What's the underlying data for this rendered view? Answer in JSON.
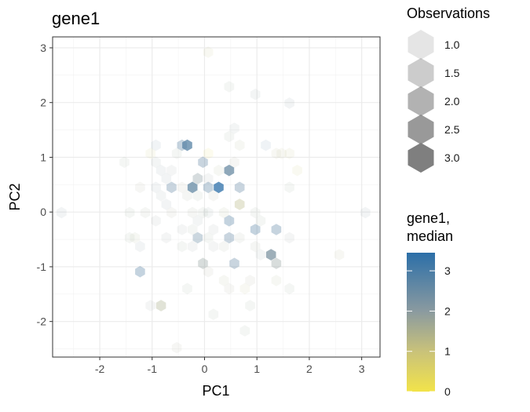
{
  "chart_data": {
    "type": "hexbin",
    "title": "gene1",
    "xlabel": "PC1",
    "ylabel": "PC2",
    "xlim": [
      -2.9,
      3.35
    ],
    "ylim": [
      -2.65,
      3.2
    ],
    "x_ticks": [
      -2,
      -1,
      0,
      1,
      2,
      3
    ],
    "y_ticks": [
      -2,
      -1,
      0,
      1,
      2,
      3
    ],
    "grid": true,
    "legend_size": {
      "title": "Observations",
      "entries": [
        {
          "label": "1.0",
          "alpha": 0.2
        },
        {
          "label": "1.5",
          "alpha": 0.4
        },
        {
          "label": "2.0",
          "alpha": 0.6
        },
        {
          "label": "2.5",
          "alpha": 0.8
        },
        {
          "label": "3.0",
          "alpha": 1.0
        }
      ],
      "color": "#7f7f7f"
    },
    "legend_color": {
      "title_lines": [
        "gene1,",
        "median"
      ],
      "ticks": [
        {
          "label": "0",
          "value": 0
        },
        {
          "label": "1",
          "value": 1
        },
        {
          "label": "2",
          "value": 2
        },
        {
          "label": "3",
          "value": 3
        }
      ],
      "range": [
        0,
        3.45
      ],
      "stops": [
        {
          "value": 0,
          "color": "#f2e34a"
        },
        {
          "value": 1,
          "color": "#c9c27a"
        },
        {
          "value": 2,
          "color": "#8a9aa0"
        },
        {
          "value": 3.45,
          "color": "#2c6fa8"
        }
      ]
    },
    "points": [
      {
        "x": 0.07,
        "y": 2.92,
        "median": 1.2,
        "count": 1
      },
      {
        "x": 0.47,
        "y": 2.29,
        "median": 1.8,
        "count": 1
      },
      {
        "x": 0.97,
        "y": 2.15,
        "median": 2.0,
        "count": 1
      },
      {
        "x": 1.62,
        "y": 1.99,
        "median": 2.2,
        "count": 1
      },
      {
        "x": 0.57,
        "y": 1.53,
        "median": 2.0,
        "count": 1
      },
      {
        "x": 0.47,
        "y": 1.38,
        "median": 1.8,
        "count": 1
      },
      {
        "x": -0.93,
        "y": 1.22,
        "median": 2.3,
        "count": 1
      },
      {
        "x": -0.43,
        "y": 1.22,
        "median": 2.7,
        "count": 2
      },
      {
        "x": -0.33,
        "y": 1.22,
        "median": 2.8,
        "count": 3
      },
      {
        "x": 0.67,
        "y": 1.22,
        "median": 1.5,
        "count": 1
      },
      {
        "x": 1.17,
        "y": 1.22,
        "median": 2.6,
        "count": 1
      },
      {
        "x": -1.03,
        "y": 1.07,
        "median": 1.0,
        "count": 1
      },
      {
        "x": -0.53,
        "y": 1.07,
        "median": 1.8,
        "count": 1
      },
      {
        "x": 0.07,
        "y": 1.07,
        "median": 0.4,
        "count": 1
      },
      {
        "x": 1.37,
        "y": 1.07,
        "median": 1.4,
        "count": 1
      },
      {
        "x": 1.47,
        "y": 1.07,
        "median": 1.3,
        "count": 1
      },
      {
        "x": 1.62,
        "y": 1.07,
        "median": 1.2,
        "count": 1
      },
      {
        "x": -1.53,
        "y": 0.91,
        "median": 1.8,
        "count": 1
      },
      {
        "x": -0.93,
        "y": 0.91,
        "median": 2.0,
        "count": 1
      },
      {
        "x": -0.03,
        "y": 0.91,
        "median": 2.6,
        "count": 2
      },
      {
        "x": 0.57,
        "y": 0.91,
        "median": 1.6,
        "count": 1
      },
      {
        "x": -0.83,
        "y": 0.76,
        "median": 2.2,
        "count": 1
      },
      {
        "x": -0.63,
        "y": 0.76,
        "median": 1.9,
        "count": 1
      },
      {
        "x": 0.27,
        "y": 0.76,
        "median": 1.5,
        "count": 1
      },
      {
        "x": 0.47,
        "y": 0.76,
        "median": 2.5,
        "count": 3
      },
      {
        "x": 1.77,
        "y": 0.76,
        "median": 1.0,
        "count": 1
      },
      {
        "x": -0.73,
        "y": 0.61,
        "median": 2.1,
        "count": 1
      },
      {
        "x": -0.13,
        "y": 0.61,
        "median": 2.0,
        "count": 2
      },
      {
        "x": 0.07,
        "y": 0.61,
        "median": 1.9,
        "count": 1
      },
      {
        "x": -1.23,
        "y": 0.45,
        "median": 1.6,
        "count": 1
      },
      {
        "x": -0.93,
        "y": 0.45,
        "median": 2.2,
        "count": 1
      },
      {
        "x": -0.63,
        "y": 0.45,
        "median": 2.6,
        "count": 2
      },
      {
        "x": -0.43,
        "y": 0.45,
        "median": 1.6,
        "count": 1
      },
      {
        "x": -0.23,
        "y": 0.45,
        "median": 2.6,
        "count": 3
      },
      {
        "x": 0.07,
        "y": 0.45,
        "median": 2.7,
        "count": 2
      },
      {
        "x": 0.27,
        "y": 0.45,
        "median": 3.45,
        "count": 3
      },
      {
        "x": 0.67,
        "y": 0.45,
        "median": 2.6,
        "count": 2
      },
      {
        "x": 1.62,
        "y": 0.45,
        "median": 1.8,
        "count": 1
      },
      {
        "x": -0.83,
        "y": 0.3,
        "median": 2.0,
        "count": 1
      },
      {
        "x": -0.33,
        "y": 0.3,
        "median": 1.7,
        "count": 1
      },
      {
        "x": -0.13,
        "y": 0.3,
        "median": 1.8,
        "count": 1
      },
      {
        "x": 0.17,
        "y": 0.3,
        "median": 1.6,
        "count": 1
      },
      {
        "x": -0.73,
        "y": 0.14,
        "median": 2.1,
        "count": 1
      },
      {
        "x": 0.67,
        "y": 0.14,
        "median": 1.3,
        "count": 2
      },
      {
        "x": -2.73,
        "y": -0.01,
        "median": 2.1,
        "count": 1
      },
      {
        "x": -1.43,
        "y": -0.01,
        "median": 1.8,
        "count": 1
      },
      {
        "x": -1.13,
        "y": -0.01,
        "median": 1.7,
        "count": 1
      },
      {
        "x": -0.63,
        "y": -0.01,
        "median": 1.6,
        "count": 1
      },
      {
        "x": -0.23,
        "y": -0.01,
        "median": 1.7,
        "count": 1
      },
      {
        "x": -0.03,
        "y": -0.01,
        "median": 1.8,
        "count": 1
      },
      {
        "x": 0.07,
        "y": -0.01,
        "median": 2.0,
        "count": 1
      },
      {
        "x": 0.37,
        "y": -0.01,
        "median": 1.5,
        "count": 1
      },
      {
        "x": 0.97,
        "y": -0.01,
        "median": 1.8,
        "count": 1
      },
      {
        "x": 3.07,
        "y": -0.01,
        "median": 2.2,
        "count": 1
      },
      {
        "x": -0.93,
        "y": -0.16,
        "median": 1.9,
        "count": 1
      },
      {
        "x": -0.13,
        "y": -0.16,
        "median": 2.0,
        "count": 1
      },
      {
        "x": 0.47,
        "y": -0.16,
        "median": 2.8,
        "count": 2
      },
      {
        "x": 1.07,
        "y": -0.16,
        "median": 1.8,
        "count": 1
      },
      {
        "x": -0.43,
        "y": -0.32,
        "median": 1.9,
        "count": 1
      },
      {
        "x": -0.23,
        "y": -0.32,
        "median": 1.8,
        "count": 1
      },
      {
        "x": 0.17,
        "y": -0.32,
        "median": 1.9,
        "count": 1
      },
      {
        "x": 0.97,
        "y": -0.32,
        "median": 2.8,
        "count": 2
      },
      {
        "x": 1.37,
        "y": -0.32,
        "median": 2.7,
        "count": 2
      },
      {
        "x": -1.43,
        "y": -0.47,
        "median": 1.8,
        "count": 1
      },
      {
        "x": -1.33,
        "y": -0.47,
        "median": 1.5,
        "count": 1
      },
      {
        "x": -0.73,
        "y": -0.47,
        "median": 1.9,
        "count": 1
      },
      {
        "x": -0.13,
        "y": -0.47,
        "median": 2.5,
        "count": 2
      },
      {
        "x": 0.07,
        "y": -0.47,
        "median": 1.8,
        "count": 1
      },
      {
        "x": 0.47,
        "y": -0.47,
        "median": 2.6,
        "count": 2
      },
      {
        "x": 0.67,
        "y": -0.47,
        "median": 1.7,
        "count": 1
      },
      {
        "x": 1.62,
        "y": -0.47,
        "median": 1.9,
        "count": 1
      },
      {
        "x": -1.23,
        "y": -0.63,
        "median": 2.2,
        "count": 1
      },
      {
        "x": -0.43,
        "y": -0.63,
        "median": 1.8,
        "count": 1
      },
      {
        "x": -0.23,
        "y": -0.63,
        "median": 1.9,
        "count": 1
      },
      {
        "x": 0.17,
        "y": -0.63,
        "median": 1.9,
        "count": 1
      },
      {
        "x": 0.37,
        "y": -0.63,
        "median": 1.7,
        "count": 1
      },
      {
        "x": 0.97,
        "y": -0.63,
        "median": 1.7,
        "count": 1
      },
      {
        "x": 2.57,
        "y": -0.78,
        "median": 1.4,
        "count": 1
      },
      {
        "x": 1.07,
        "y": -0.78,
        "median": 2.0,
        "count": 1
      },
      {
        "x": 1.27,
        "y": -0.78,
        "median": 2.2,
        "count": 3
      },
      {
        "x": -0.03,
        "y": -0.94,
        "median": 1.9,
        "count": 2
      },
      {
        "x": 0.57,
        "y": -0.94,
        "median": 2.6,
        "count": 2
      },
      {
        "x": 1.37,
        "y": -0.94,
        "median": 1.9,
        "count": 2
      },
      {
        "x": -1.23,
        "y": -1.09,
        "median": 2.8,
        "count": 2
      },
      {
        "x": 0.07,
        "y": -1.09,
        "median": 1.6,
        "count": 1
      },
      {
        "x": 0.37,
        "y": -1.25,
        "median": 1.5,
        "count": 1
      },
      {
        "x": 0.87,
        "y": -1.25,
        "median": 1.6,
        "count": 1
      },
      {
        "x": 1.37,
        "y": -1.25,
        "median": 1.5,
        "count": 1
      },
      {
        "x": -0.33,
        "y": -1.4,
        "median": 1.8,
        "count": 1
      },
      {
        "x": 0.47,
        "y": -1.4,
        "median": 1.6,
        "count": 1
      },
      {
        "x": 0.77,
        "y": -1.4,
        "median": 1.3,
        "count": 1
      },
      {
        "x": 1.62,
        "y": -1.4,
        "median": 1.8,
        "count": 1
      },
      {
        "x": -1.03,
        "y": -1.71,
        "median": 1.9,
        "count": 1
      },
      {
        "x": -0.83,
        "y": -1.71,
        "median": 1.5,
        "count": 2
      },
      {
        "x": 0.87,
        "y": -1.71,
        "median": 1.8,
        "count": 1
      },
      {
        "x": 0.17,
        "y": -1.87,
        "median": 1.8,
        "count": 1
      },
      {
        "x": 0.77,
        "y": -2.17,
        "median": 1.8,
        "count": 1
      },
      {
        "x": -0.53,
        "y": -2.48,
        "median": 1.6,
        "count": 1
      }
    ]
  }
}
